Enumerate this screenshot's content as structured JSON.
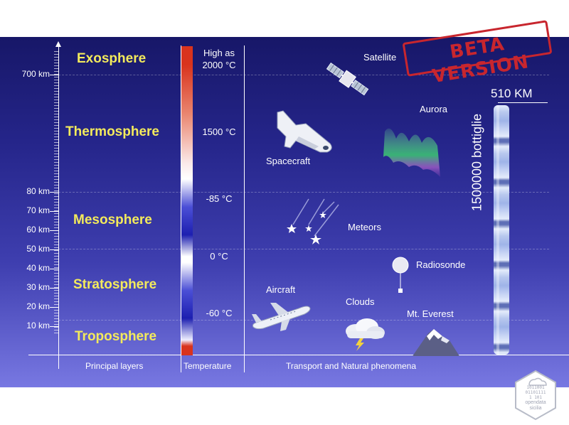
{
  "layers": {
    "exosphere": "Exosphere",
    "thermosphere": "Thermosphere",
    "mesosphere": "Mesosphere",
    "stratosphere": "Stratosphere",
    "troposphere": "Troposphere"
  },
  "altitude_ticks": [
    "700 km",
    "80 km",
    "70 km",
    "60 km",
    "50 km",
    "40 km",
    "30 km",
    "20 km",
    "10 km"
  ],
  "temperatures": {
    "high_line1": "High as",
    "high_line2": "2000 °C",
    "t1500": "1500 °C",
    "t_minus85": "-85 °C",
    "t0": "0 °C",
    "t_minus60": "-60 °C"
  },
  "phenomena": {
    "satellite": "Satellite",
    "aurora": "Aurora",
    "spacecraft": "Spacecraft",
    "meteors": "Meteors",
    "radiosonde": "Radiosonde",
    "aircraft": "Aircraft",
    "clouds": "Clouds",
    "everest": "Mt. Everest"
  },
  "bottle_column": {
    "height_label": "510 KM",
    "count_label": "1500000 bottiglie"
  },
  "footer": {
    "layers": "Principal layers",
    "temperature": "Temperature",
    "transport": "Transport and Natural phenomena"
  },
  "stamp": "BETA VERSION",
  "logo": {
    "binary1": "1011001",
    "binary2": "01101111",
    "binary3": "1 101",
    "name1": "opendata",
    "name2": "sicilia"
  },
  "colors": {
    "layer_text": "#f3ea5c",
    "stamp_red": "#c8262e",
    "temp_hot": "#d9331d",
    "temp_cold": "#1d1fb0"
  }
}
